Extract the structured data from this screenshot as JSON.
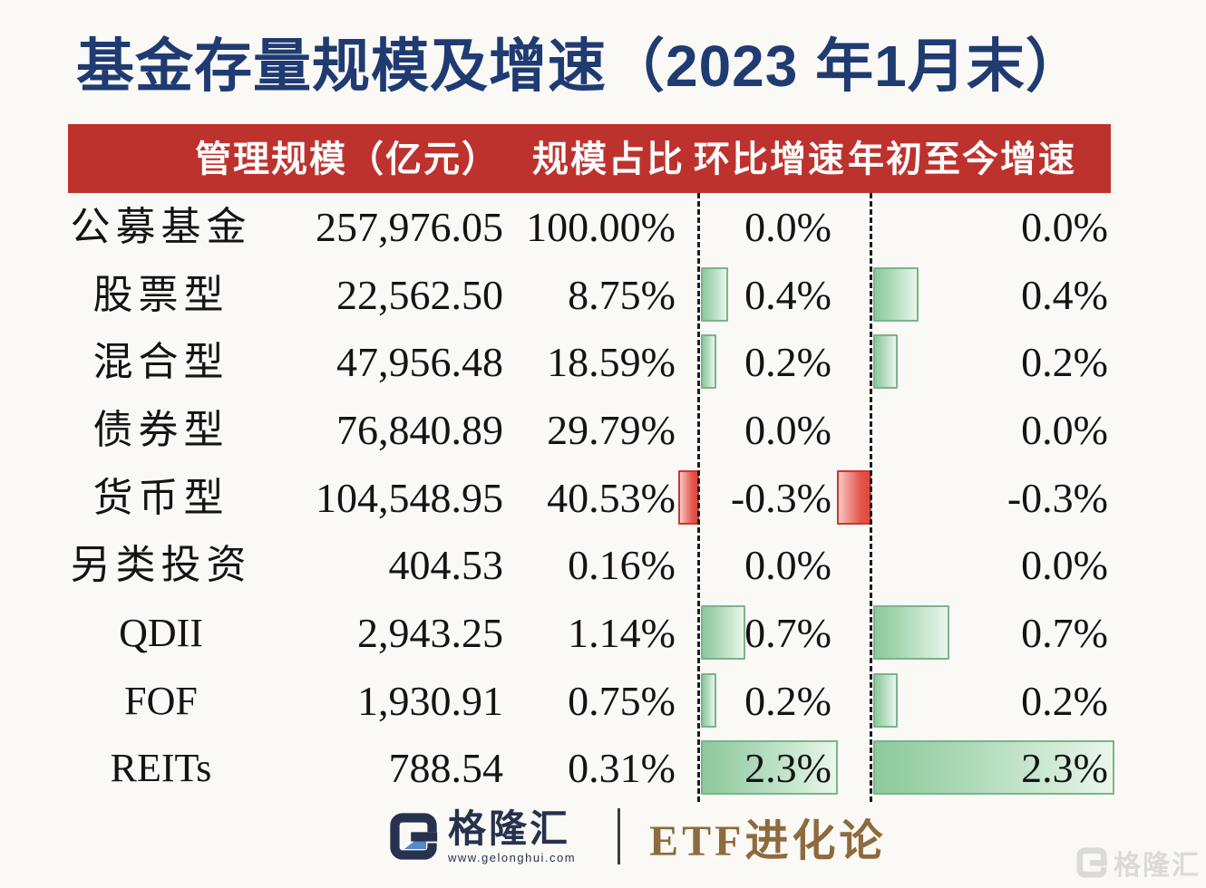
{
  "title": "基金存量规模及增速（2023 年1月末）",
  "table": {
    "headers": {
      "scale": "管理规模（亿元）",
      "share": "规模占比",
      "mom": "环比增速",
      "ytd": "年初至今增速"
    },
    "rows": [
      {
        "label": "公募基金",
        "scale": "257,976.05",
        "share": "100.00%",
        "mom_text": "0.0%",
        "mom": 0.0,
        "ytd_text": "0.0%",
        "ytd": 0.0
      },
      {
        "label": "股票型",
        "scale": "22,562.50",
        "share": "8.75%",
        "mom_text": "0.4%",
        "mom": 0.4,
        "ytd_text": "0.4%",
        "ytd": 0.4
      },
      {
        "label": "混合型",
        "scale": "47,956.48",
        "share": "18.59%",
        "mom_text": "0.2%",
        "mom": 0.2,
        "ytd_text": "0.2%",
        "ytd": 0.2
      },
      {
        "label": "债券型",
        "scale": "76,840.89",
        "share": "29.79%",
        "mom_text": "0.0%",
        "mom": 0.0,
        "ytd_text": "0.0%",
        "ytd": 0.0
      },
      {
        "label": "货币型",
        "scale": "104,548.95",
        "share": "40.53%",
        "mom_text": "-0.3%",
        "mom": -0.3,
        "ytd_text": "-0.3%",
        "ytd": -0.3
      },
      {
        "label": "另类投资",
        "scale": "404.53",
        "share": "0.16%",
        "mom_text": "0.0%",
        "mom": 0.0,
        "ytd_text": "0.0%",
        "ytd": 0.0
      },
      {
        "label": "QDII",
        "scale": "2,943.25",
        "share": "1.14%",
        "mom_text": "0.7%",
        "mom": 0.7,
        "ytd_text": "0.7%",
        "ytd": 0.7
      },
      {
        "label": "FOF",
        "scale": "1,930.91",
        "share": "0.75%",
        "mom_text": "0.2%",
        "mom": 0.2,
        "ytd_text": "0.2%",
        "ytd": 0.2
      },
      {
        "label": "REITs",
        "scale": "788.54",
        "share": "0.31%",
        "mom_text": "2.3%",
        "mom": 2.3,
        "ytd_text": "2.3%",
        "ytd": 2.3
      }
    ]
  },
  "chart_data": {
    "type": "bar",
    "orientation": "horizontal",
    "title": "基金存量规模及增速（2023 年1月末）",
    "categories": [
      "公募基金",
      "股票型",
      "混合型",
      "债券型",
      "货币型",
      "另类投资",
      "QDII",
      "FOF",
      "REITs"
    ],
    "series": [
      {
        "name": "管理规模（亿元）",
        "values": [
          257976.05,
          22562.5,
          47956.48,
          76840.89,
          104548.95,
          404.53,
          2943.25,
          1930.91,
          788.54
        ]
      },
      {
        "name": "规模占比(%)",
        "values": [
          100.0,
          8.75,
          18.59,
          29.79,
          40.53,
          0.16,
          1.14,
          0.75,
          0.31
        ]
      },
      {
        "name": "环比增速(%)",
        "values": [
          0.0,
          0.4,
          0.2,
          0.0,
          -0.3,
          0.0,
          0.7,
          0.2,
          2.3
        ]
      },
      {
        "name": "年初至今增速(%)",
        "values": [
          0.0,
          0.4,
          0.2,
          0.0,
          -0.3,
          0.0,
          0.7,
          0.2,
          2.3
        ]
      }
    ],
    "bar_positive_color": "#8dc99c",
    "bar_negative_color": "#e1463d",
    "zero_axis_style": "dashed",
    "grid": false,
    "legend_position": "none"
  },
  "footer": {
    "brand_name": "格隆汇",
    "brand_url": "www.gelonghui.com",
    "channel": "ETF进化论"
  },
  "watermark": {
    "text": "格隆汇"
  },
  "colors": {
    "title": "#1f3b72",
    "header_bg": "#be322e",
    "header_text": "#ffffff",
    "positive_bar": "#8dc99c",
    "negative_bar": "#e1463d",
    "brand_navy": "#26324e",
    "brand_blue": "#5588c7",
    "channel_brown": "#8d6b3d",
    "background": "#faf9f6"
  }
}
